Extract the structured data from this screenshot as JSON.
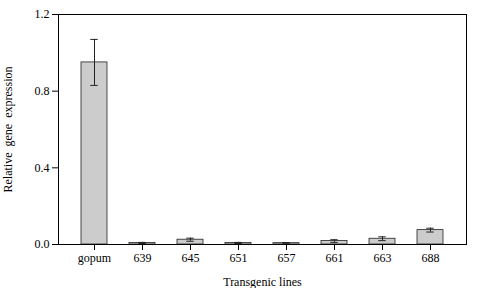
{
  "chart_data": {
    "type": "bar",
    "categories": [
      "gopum",
      "639",
      "645",
      "651",
      "657",
      "661",
      "663",
      "688"
    ],
    "values": [
      0.95,
      0.008,
      0.025,
      0.008,
      0.007,
      0.018,
      0.03,
      0.075
    ],
    "errors": [
      0.12,
      0.003,
      0.008,
      0.003,
      0.003,
      0.007,
      0.01,
      0.01
    ],
    "color": "#cccccc",
    "xlabel": "Transgenic lines",
    "ylabel": "Relative  gene  expression",
    "ylim": [
      0,
      1.2
    ],
    "yticks": [
      {
        "value": 0,
        "label": "0.0"
      },
      0.4,
      0.8,
      1.2
    ],
    "grid": false
  }
}
